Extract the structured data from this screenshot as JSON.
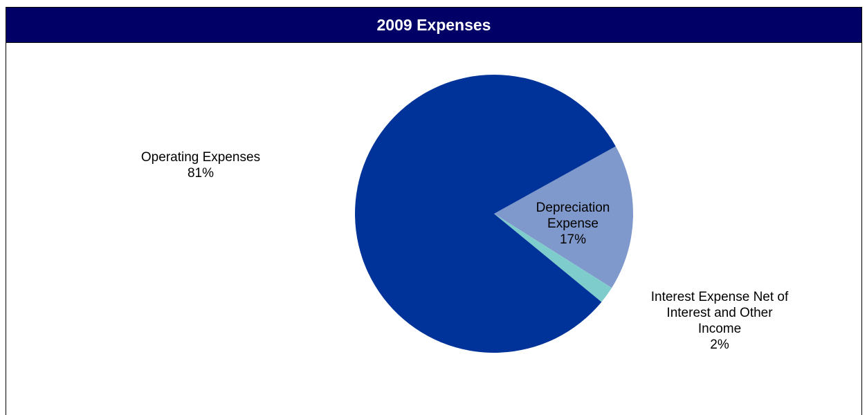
{
  "chart_data": {
    "type": "pie",
    "title": "2009 Expenses",
    "slices": [
      {
        "label_lines": [
          "Operating Expenses"
        ],
        "percent_label": "81%",
        "value": 81,
        "color": "#003399"
      },
      {
        "label_lines": [
          "Depreciation",
          "Expense"
        ],
        "percent_label": "17%",
        "value": 17,
        "color": "#8099CC"
      },
      {
        "label_lines": [
          "Interest Expense Net of",
          "Interest and Other",
          "Income"
        ],
        "percent_label": "2%",
        "value": 2,
        "color": "#7FCCCC"
      }
    ]
  },
  "colors": {
    "title_bar": "#000066",
    "title_text": "#ffffff"
  }
}
